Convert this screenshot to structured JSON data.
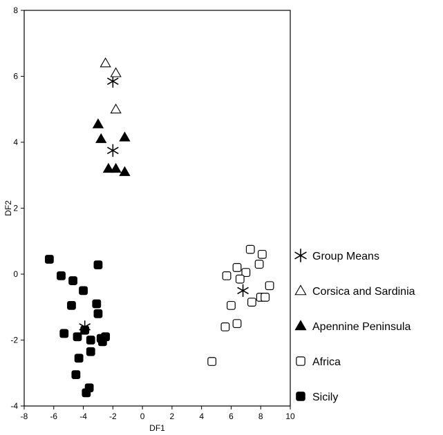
{
  "chart_data": {
    "type": "scatter",
    "title": "",
    "xlabel": "DF1",
    "ylabel": "DF2",
    "xlim": [
      -8,
      10
    ],
    "ylim": [
      -4,
      8
    ],
    "xticks": [
      "-8",
      "-6",
      "-4",
      "-2",
      "0",
      "2",
      "4",
      "6",
      "8",
      "10"
    ],
    "yticks": [
      "-4",
      "-2",
      "0",
      "2",
      "4",
      "6",
      "8"
    ],
    "grid": false,
    "legend_position": "right",
    "series": [
      {
        "name": "Group Means",
        "marker": "asterisk",
        "points": [
          [
            -2.0,
            5.85
          ],
          [
            -2.0,
            3.75
          ],
          [
            -3.9,
            -1.6
          ],
          [
            6.8,
            -0.5
          ]
        ]
      },
      {
        "name": "Corsica and Sardinia",
        "marker": "triangle-open",
        "points": [
          [
            -2.5,
            6.4
          ],
          [
            -1.8,
            6.1
          ],
          [
            -1.8,
            5.0
          ]
        ]
      },
      {
        "name": "Apennine Peninsula",
        "marker": "triangle-filled",
        "points": [
          [
            -3.0,
            4.55
          ],
          [
            -2.8,
            4.1
          ],
          [
            -1.2,
            4.15
          ],
          [
            -2.3,
            3.2
          ],
          [
            -1.8,
            3.2
          ],
          [
            -1.2,
            3.1
          ]
        ]
      },
      {
        "name": "Africa",
        "marker": "square-open",
        "points": [
          [
            7.3,
            0.75
          ],
          [
            8.1,
            0.6
          ],
          [
            6.4,
            0.2
          ],
          [
            7.0,
            0.05
          ],
          [
            7.9,
            0.3
          ],
          [
            5.7,
            -0.05
          ],
          [
            6.6,
            -0.15
          ],
          [
            8.6,
            -0.35
          ],
          [
            7.4,
            -0.85
          ],
          [
            8.0,
            -0.7
          ],
          [
            8.3,
            -0.7
          ],
          [
            6.0,
            -0.95
          ],
          [
            5.6,
            -1.6
          ],
          [
            6.4,
            -1.5
          ],
          [
            4.7,
            -2.65
          ]
        ]
      },
      {
        "name": "Sicily",
        "marker": "square-filled",
        "points": [
          [
            -6.3,
            0.45
          ],
          [
            -3.0,
            0.28
          ],
          [
            -5.5,
            -0.05
          ],
          [
            -4.7,
            -0.2
          ],
          [
            -4.0,
            -0.5
          ],
          [
            -4.8,
            -0.95
          ],
          [
            -3.1,
            -0.9
          ],
          [
            -3.0,
            -1.2
          ],
          [
            -5.3,
            -1.8
          ],
          [
            -3.9,
            -1.7
          ],
          [
            -4.4,
            -1.9
          ],
          [
            -2.8,
            -1.95
          ],
          [
            -2.5,
            -1.9
          ],
          [
            -3.5,
            -2.0
          ],
          [
            -2.7,
            -2.05
          ],
          [
            -4.3,
            -2.55
          ],
          [
            -3.5,
            -2.35
          ],
          [
            -4.5,
            -3.05
          ],
          [
            -3.6,
            -3.45
          ],
          [
            -3.8,
            -3.6
          ]
        ]
      }
    ]
  }
}
